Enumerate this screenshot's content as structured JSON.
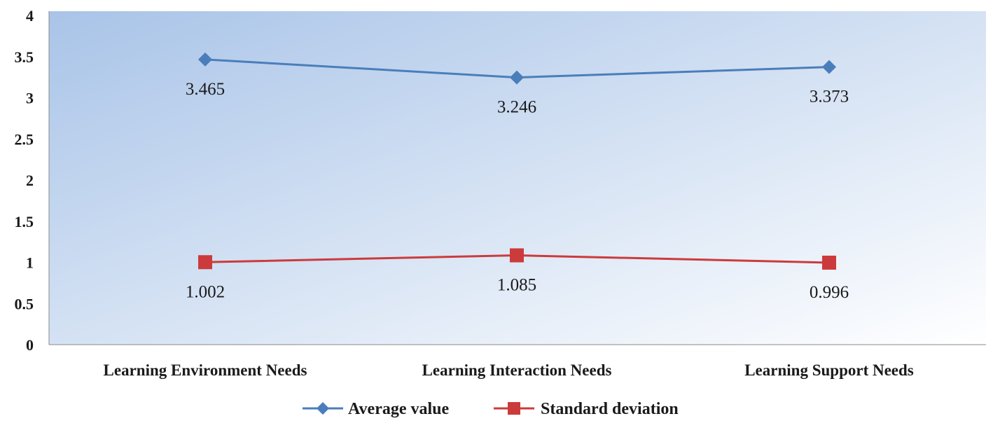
{
  "chart_data": {
    "type": "line",
    "categories": [
      "Learning Environment Needs",
      "Learning Interaction Needs",
      "Learning Support Needs"
    ],
    "series": [
      {
        "name": "Average value",
        "values": [
          3.465,
          3.246,
          3.373
        ],
        "labels": [
          "3.465",
          "3.246",
          "3.373"
        ],
        "color": "#4a7ebb",
        "marker": "diamond"
      },
      {
        "name": "Standard deviation",
        "values": [
          1.002,
          1.085,
          0.996
        ],
        "labels": [
          "1.002",
          "1.085",
          "0.996"
        ],
        "color": "#cc3b3b",
        "marker": "square"
      }
    ],
    "title": "",
    "xlabel": "",
    "ylabel": "",
    "ylim": [
      0,
      4
    ],
    "yticks": [
      "0",
      "0.5",
      "1",
      "1.5",
      "2",
      "2.5",
      "3",
      "3.5",
      "4"
    ],
    "grid": false,
    "legend": "bottom",
    "plot_background": [
      "#a9c4e8",
      "#ffffff"
    ]
  }
}
